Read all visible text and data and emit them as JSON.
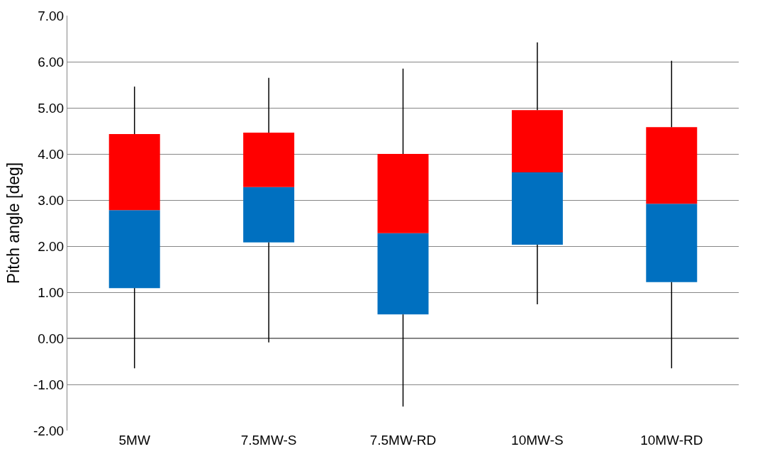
{
  "chart_data": {
    "type": "box",
    "ylabel": "Pitch angle [deg]",
    "categories": [
      "5MW",
      "7.5MW-S",
      "7.5MW-RD",
      "10MW-S",
      "10MW-RD"
    ],
    "colors": [
      [
        "#0070c0",
        "#ff0000"
      ],
      [
        "#0070c0",
        "#ff0000"
      ],
      [
        "#0070c0",
        "#ff0000"
      ],
      [
        "#0070c0",
        "#ff0000"
      ],
      [
        "#0070c0",
        "#ff0000"
      ]
    ],
    "boxes": [
      {
        "low": -0.65,
        "q1": 1.09,
        "median": 2.78,
        "q3": 4.43,
        "high": 5.46
      },
      {
        "low": -0.09,
        "q1": 2.08,
        "median": 3.28,
        "q3": 4.46,
        "high": 5.65
      },
      {
        "low": -1.48,
        "q1": 0.52,
        "median": 2.28,
        "q3": 4.0,
        "high": 5.85
      },
      {
        "low": 0.74,
        "q1": 2.03,
        "median": 3.6,
        "q3": 4.95,
        "high": 6.42
      },
      {
        "low": -0.65,
        "q1": 1.22,
        "median": 2.92,
        "q3": 4.58,
        "high": 6.02
      }
    ],
    "ylim": [
      -2,
      7
    ],
    "yticks": [
      {
        "value": -2,
        "label": "-2.00"
      },
      {
        "value": -1,
        "label": "-1.00"
      },
      {
        "value": 0,
        "label": "0.00"
      },
      {
        "value": 1,
        "label": "1.00"
      },
      {
        "value": 2,
        "label": "2.00"
      },
      {
        "value": 3,
        "label": "3.00"
      },
      {
        "value": 4,
        "label": "4.00"
      },
      {
        "value": 5,
        "label": "5.00"
      },
      {
        "value": 6,
        "label": "6.00"
      },
      {
        "value": 7,
        "label": "7.00"
      }
    ],
    "grid": "y"
  }
}
